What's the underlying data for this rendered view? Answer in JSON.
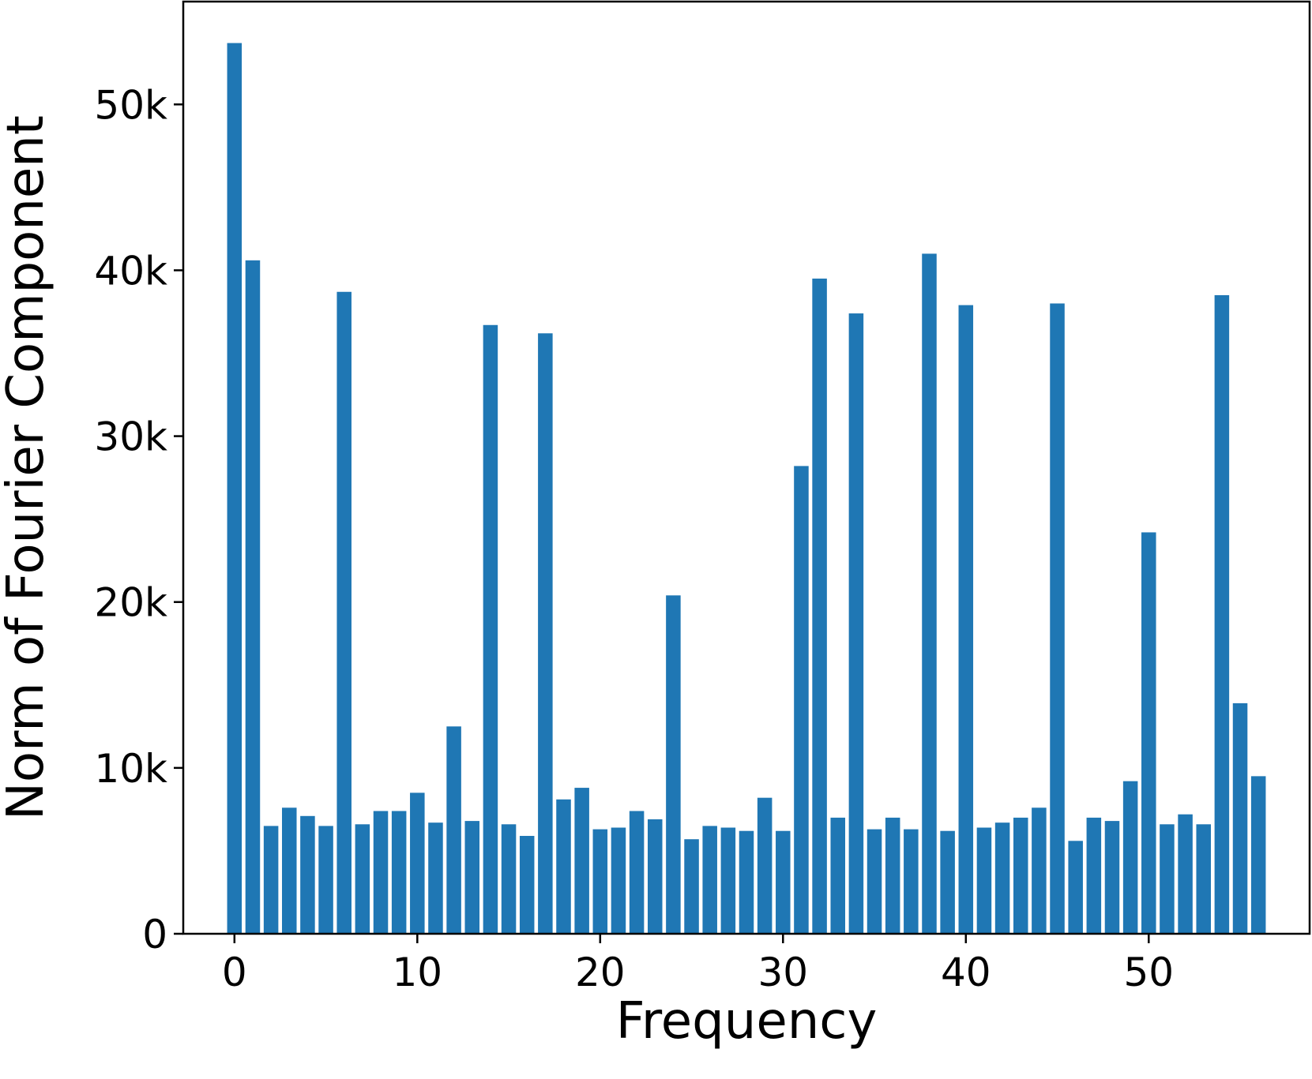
{
  "chart_data": {
    "type": "bar",
    "title": "",
    "xlabel": "Frequency",
    "ylabel": "Norm of Fourier Component",
    "bar_color": "#1f77b4",
    "grid": false,
    "legend": "none",
    "xlim": [
      -2.8,
      58.8
    ],
    "ylim": [
      0,
      56200
    ],
    "x_ticks": [
      0,
      10,
      20,
      30,
      40,
      50
    ],
    "x_tick_labels": [
      "0",
      "10",
      "20",
      "30",
      "40",
      "50"
    ],
    "y_ticks": [
      0,
      10000,
      20000,
      30000,
      40000,
      50000
    ],
    "y_tick_labels": [
      "0",
      "10k",
      "20k",
      "30k",
      "40k",
      "50k"
    ],
    "x": [
      0,
      1,
      2,
      3,
      4,
      5,
      6,
      7,
      8,
      9,
      10,
      11,
      12,
      13,
      14,
      15,
      16,
      17,
      18,
      19,
      20,
      21,
      22,
      23,
      24,
      25,
      26,
      27,
      28,
      29,
      30,
      31,
      32,
      33,
      34,
      35,
      36,
      37,
      38,
      39,
      40,
      41,
      42,
      43,
      44,
      45,
      46,
      47,
      48,
      49,
      50,
      51,
      52,
      53,
      54,
      55,
      56
    ],
    "values": [
      53700,
      40600,
      6500,
      7600,
      7100,
      6500,
      38700,
      6600,
      7400,
      7400,
      8500,
      6700,
      12500,
      6800,
      36700,
      6600,
      5900,
      36200,
      8100,
      8800,
      6300,
      6400,
      7400,
      6900,
      20400,
      5700,
      6500,
      6400,
      6200,
      8200,
      6200,
      28200,
      39500,
      7000,
      37400,
      6300,
      7000,
      6300,
      41000,
      6200,
      37900,
      6400,
      6700,
      7000,
      7600,
      38000,
      5600,
      7000,
      6800,
      9200,
      24200,
      6600,
      7200,
      6600,
      38500,
      13900,
      9500
    ]
  }
}
